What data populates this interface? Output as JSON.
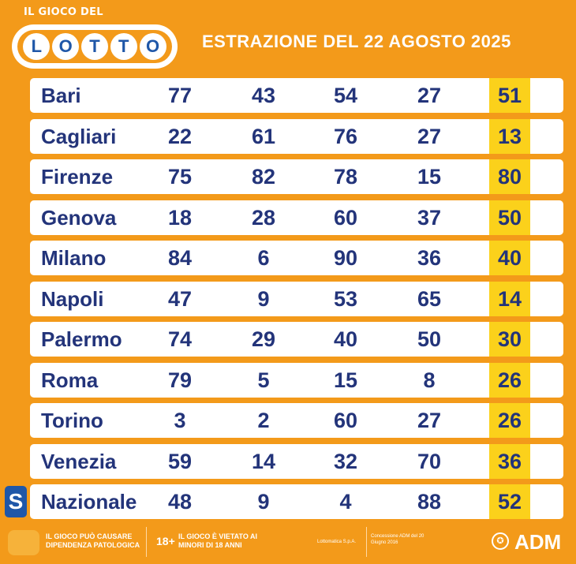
{
  "header": {
    "logo_small": "IL GIOCO DEL",
    "logo_letters": [
      "L",
      "O",
      "T",
      "T",
      "O"
    ],
    "title": "ESTRAZIONE DEL 22 AGOSTO 2025"
  },
  "rows": [
    {
      "city": "Bari",
      "numbers": [
        "77",
        "43",
        "54",
        "27",
        "51"
      ]
    },
    {
      "city": "Cagliari",
      "numbers": [
        "22",
        "61",
        "76",
        "27",
        "13"
      ]
    },
    {
      "city": "Firenze",
      "numbers": [
        "75",
        "82",
        "78",
        "15",
        "80"
      ]
    },
    {
      "city": "Genova",
      "numbers": [
        "18",
        "28",
        "60",
        "37",
        "50"
      ]
    },
    {
      "city": "Milano",
      "numbers": [
        "84",
        "6",
        "90",
        "36",
        "40"
      ]
    },
    {
      "city": "Napoli",
      "numbers": [
        "47",
        "9",
        "53",
        "65",
        "14"
      ]
    },
    {
      "city": "Palermo",
      "numbers": [
        "74",
        "29",
        "40",
        "50",
        "30"
      ]
    },
    {
      "city": "Roma",
      "numbers": [
        "79",
        "5",
        "15",
        "8",
        "26"
      ]
    },
    {
      "city": "Torino",
      "numbers": [
        "3",
        "2",
        "60",
        "27",
        "26"
      ]
    },
    {
      "city": "Venezia",
      "numbers": [
        "59",
        "14",
        "32",
        "70",
        "36"
      ]
    },
    {
      "city": "Nazionale",
      "numbers": [
        "48",
        "9",
        "4",
        "88",
        "52"
      ],
      "badge": "S"
    }
  ],
  "footer": {
    "warning": "IL GIOCO PUÒ CAUSARE DIPENDENZA PATOLOGICA",
    "age": "18+",
    "age_warning": "IL GIOCO È VIETATO AI MINORI DI 18 ANNI",
    "company": "Lottomatica S.p.A.",
    "concession": "Concessione ADM del 20 Giugno 2016",
    "adm": "ADM"
  },
  "colors": {
    "background": "#f39a1a",
    "text": "#23347a",
    "highlight": "#fbd11b",
    "brand_blue": "#1f57a8"
  }
}
